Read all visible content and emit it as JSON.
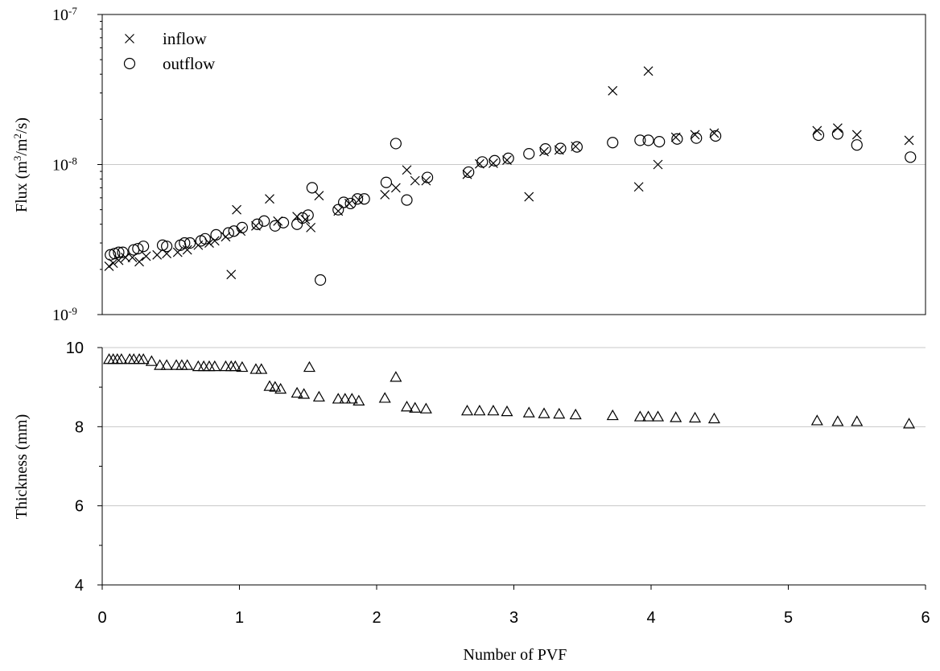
{
  "chart_data": [
    {
      "type": "scatter",
      "title": "",
      "ylabel": "Flux (m3/m2/s)",
      "ylabel_parts": [
        "Flux (m",
        "3",
        "/m",
        "2",
        "/s)"
      ],
      "yscale": "log",
      "ylim": [
        1e-09,
        1e-07
      ],
      "yticks": [
        {
          "base": "10",
          "exp": "-9"
        },
        {
          "base": "10",
          "exp": "-8"
        },
        {
          "base": "10",
          "exp": "-7"
        }
      ],
      "xlim": [
        0,
        6
      ],
      "grid": "horizontal",
      "legend_position": "top-left",
      "series": [
        {
          "name": "inflow",
          "marker": "x",
          "points": [
            [
              0.05,
              2.1e-09
            ],
            [
              0.08,
              2.2e-09
            ],
            [
              0.12,
              2.3e-09
            ],
            [
              0.17,
              2.4e-09
            ],
            [
              0.22,
              2.4e-09
            ],
            [
              0.27,
              2.25e-09
            ],
            [
              0.32,
              2.45e-09
            ],
            [
              0.4,
              2.5e-09
            ],
            [
              0.47,
              2.55e-09
            ],
            [
              0.55,
              2.6e-09
            ],
            [
              0.62,
              2.7e-09
            ],
            [
              0.7,
              2.9e-09
            ],
            [
              0.78,
              3e-09
            ],
            [
              0.82,
              3.1e-09
            ],
            [
              0.9,
              3.3e-09
            ],
            [
              0.94,
              1.85e-09
            ],
            [
              0.98,
              5e-09
            ],
            [
              1.01,
              3.6e-09
            ],
            [
              1.12,
              3.9e-09
            ],
            [
              1.22,
              5.9e-09
            ],
            [
              1.28,
              4.2e-09
            ],
            [
              1.42,
              4.5e-09
            ],
            [
              1.48,
              4.3e-09
            ],
            [
              1.52,
              3.8e-09
            ],
            [
              1.58,
              6.2e-09
            ],
            [
              1.72,
              4.9e-09
            ],
            [
              1.8,
              5.5e-09
            ],
            [
              1.87,
              5.8e-09
            ],
            [
              2.06,
              6.3e-09
            ],
            [
              2.14,
              7e-09
            ],
            [
              2.22,
              9.2e-09
            ],
            [
              2.28,
              7.8e-09
            ],
            [
              2.36,
              7.8e-09
            ],
            [
              2.66,
              8.6e-09
            ],
            [
              2.75,
              1.01e-08
            ],
            [
              2.85,
              1.02e-08
            ],
            [
              2.95,
              1.07e-08
            ],
            [
              3.11,
              6.1e-09
            ],
            [
              3.22,
              1.22e-08
            ],
            [
              3.33,
              1.25e-08
            ],
            [
              3.45,
              1.32e-08
            ],
            [
              3.72,
              3.1e-08
            ],
            [
              3.91,
              7.1e-09
            ],
            [
              3.98,
              4.2e-08
            ],
            [
              4.05,
              1e-08
            ],
            [
              4.18,
              1.52e-08
            ],
            [
              4.32,
              1.58e-08
            ],
            [
              4.46,
              1.62e-08
            ],
            [
              5.21,
              1.68e-08
            ],
            [
              5.36,
              1.75e-08
            ],
            [
              5.5,
              1.58e-08
            ],
            [
              5.88,
              1.45e-08
            ]
          ]
        },
        {
          "name": "outflow",
          "marker": "circle",
          "points": [
            [
              0.06,
              2.5e-09
            ],
            [
              0.09,
              2.55e-09
            ],
            [
              0.12,
              2.6e-09
            ],
            [
              0.15,
              2.6e-09
            ],
            [
              0.23,
              2.7e-09
            ],
            [
              0.26,
              2.75e-09
            ],
            [
              0.3,
              2.85e-09
            ],
            [
              0.44,
              2.9e-09
            ],
            [
              0.47,
              2.85e-09
            ],
            [
              0.57,
              2.9e-09
            ],
            [
              0.6,
              3e-09
            ],
            [
              0.64,
              3e-09
            ],
            [
              0.72,
              3.1e-09
            ],
            [
              0.75,
              3.2e-09
            ],
            [
              0.83,
              3.4e-09
            ],
            [
              0.92,
              3.5e-09
            ],
            [
              0.96,
              3.6e-09
            ],
            [
              1.02,
              3.8e-09
            ],
            [
              1.13,
              4e-09
            ],
            [
              1.18,
              4.2e-09
            ],
            [
              1.26,
              3.9e-09
            ],
            [
              1.32,
              4.1e-09
            ],
            [
              1.42,
              4e-09
            ],
            [
              1.46,
              4.4e-09
            ],
            [
              1.5,
              4.6e-09
            ],
            [
              1.53,
              7e-09
            ],
            [
              1.59,
              1.7e-09
            ],
            [
              1.72,
              5e-09
            ],
            [
              1.76,
              5.6e-09
            ],
            [
              1.81,
              5.5e-09
            ],
            [
              1.86,
              5.9e-09
            ],
            [
              1.91,
              5.9e-09
            ],
            [
              2.07,
              7.6e-09
            ],
            [
              2.14,
              1.38e-08
            ],
            [
              2.22,
              5.8e-09
            ],
            [
              2.37,
              8.2e-09
            ],
            [
              2.67,
              8.9e-09
            ],
            [
              2.77,
              1.04e-08
            ],
            [
              2.86,
              1.06e-08
            ],
            [
              2.96,
              1.1e-08
            ],
            [
              3.11,
              1.18e-08
            ],
            [
              3.23,
              1.27e-08
            ],
            [
              3.34,
              1.28e-08
            ],
            [
              3.46,
              1.31e-08
            ],
            [
              3.72,
              1.4e-08
            ],
            [
              3.92,
              1.45e-08
            ],
            [
              3.98,
              1.45e-08
            ],
            [
              4.06,
              1.42e-08
            ],
            [
              4.19,
              1.48e-08
            ],
            [
              4.33,
              1.5e-08
            ],
            [
              4.47,
              1.55e-08
            ],
            [
              5.22,
              1.57e-08
            ],
            [
              5.36,
              1.6e-08
            ],
            [
              5.5,
              1.35e-08
            ],
            [
              5.89,
              1.12e-08
            ]
          ]
        }
      ]
    },
    {
      "type": "scatter",
      "title": "",
      "xlabel": "Number of PVF",
      "ylabel": "Thickness (mm)",
      "ylim": [
        4,
        10
      ],
      "yticks": [
        "4",
        "6",
        "8",
        "10"
      ],
      "xlim": [
        0,
        6
      ],
      "xticks": [
        "0",
        "1",
        "2",
        "3",
        "4",
        "5",
        "6"
      ],
      "grid": "horizontal",
      "series": [
        {
          "marker": "triangle",
          "points": [
            [
              0.05,
              9.7
            ],
            [
              0.08,
              9.7
            ],
            [
              0.11,
              9.7
            ],
            [
              0.14,
              9.7
            ],
            [
              0.2,
              9.7
            ],
            [
              0.23,
              9.7
            ],
            [
              0.27,
              9.7
            ],
            [
              0.3,
              9.7
            ],
            [
              0.36,
              9.65
            ],
            [
              0.42,
              9.55
            ],
            [
              0.47,
              9.55
            ],
            [
              0.54,
              9.55
            ],
            [
              0.58,
              9.55
            ],
            [
              0.62,
              9.55
            ],
            [
              0.7,
              9.52
            ],
            [
              0.74,
              9.52
            ],
            [
              0.78,
              9.52
            ],
            [
              0.82,
              9.52
            ],
            [
              0.9,
              9.52
            ],
            [
              0.94,
              9.52
            ],
            [
              0.97,
              9.52
            ],
            [
              1.02,
              9.5
            ],
            [
              1.12,
              9.45
            ],
            [
              1.16,
              9.45
            ],
            [
              1.22,
              9.02
            ],
            [
              1.26,
              9.0
            ],
            [
              1.3,
              8.95
            ],
            [
              1.42,
              8.85
            ],
            [
              1.47,
              8.82
            ],
            [
              1.51,
              9.5
            ],
            [
              1.58,
              8.75
            ],
            [
              1.72,
              8.7
            ],
            [
              1.77,
              8.7
            ],
            [
              1.82,
              8.7
            ],
            [
              1.87,
              8.65
            ],
            [
              2.06,
              8.72
            ],
            [
              2.14,
              9.25
            ],
            [
              2.22,
              8.5
            ],
            [
              2.28,
              8.47
            ],
            [
              2.36,
              8.45
            ],
            [
              2.66,
              8.4
            ],
            [
              2.75,
              8.4
            ],
            [
              2.85,
              8.4
            ],
            [
              2.95,
              8.38
            ],
            [
              3.11,
              8.35
            ],
            [
              3.22,
              8.33
            ],
            [
              3.33,
              8.32
            ],
            [
              3.45,
              8.3
            ],
            [
              3.72,
              8.28
            ],
            [
              3.92,
              8.25
            ],
            [
              3.98,
              8.25
            ],
            [
              4.05,
              8.25
            ],
            [
              4.18,
              8.23
            ],
            [
              4.32,
              8.22
            ],
            [
              4.46,
              8.2
            ],
            [
              5.21,
              8.15
            ],
            [
              5.36,
              8.13
            ],
            [
              5.5,
              8.13
            ],
            [
              5.88,
              8.07
            ]
          ]
        }
      ]
    }
  ]
}
